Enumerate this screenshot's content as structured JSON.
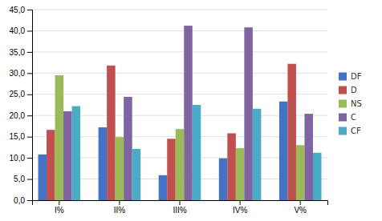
{
  "chart_data": {
    "type": "bar",
    "categories": [
      "I%",
      "II%",
      "III%",
      "IV%",
      "V%"
    ],
    "series": [
      {
        "name": "DF",
        "color": "#4472C4",
        "values": [
          10.8,
          17.2,
          5.9,
          9.9,
          23.3
        ]
      },
      {
        "name": "D",
        "color": "#C0504D",
        "values": [
          16.6,
          31.8,
          14.5,
          15.8,
          32.2
        ]
      },
      {
        "name": "NS",
        "color": "#9BBB59",
        "values": [
          29.5,
          14.9,
          16.8,
          12.3,
          13.0
        ]
      },
      {
        "name": "C",
        "color": "#8064A2",
        "values": [
          21.0,
          24.4,
          41.2,
          40.8,
          20.4
        ]
      },
      {
        "name": "CF",
        "color": "#4BACC6",
        "values": [
          22.2,
          12.1,
          22.5,
          21.6,
          11.2
        ]
      }
    ],
    "ylim": [
      0,
      45
    ],
    "yticks": [
      {
        "value": 0,
        "label": "0,0"
      },
      {
        "value": 5,
        "label": "5,0"
      },
      {
        "value": 10,
        "label": "10,0"
      },
      {
        "value": 15,
        "label": "15,0"
      },
      {
        "value": 20,
        "label": "20,0"
      },
      {
        "value": 25,
        "label": "25,0"
      },
      {
        "value": 30,
        "label": "30,0"
      },
      {
        "value": 35,
        "label": "35,0"
      },
      {
        "value": 40,
        "label": "40,0"
      },
      {
        "value": 45,
        "label": "45,0"
      }
    ],
    "grid": true,
    "legend": "right"
  }
}
